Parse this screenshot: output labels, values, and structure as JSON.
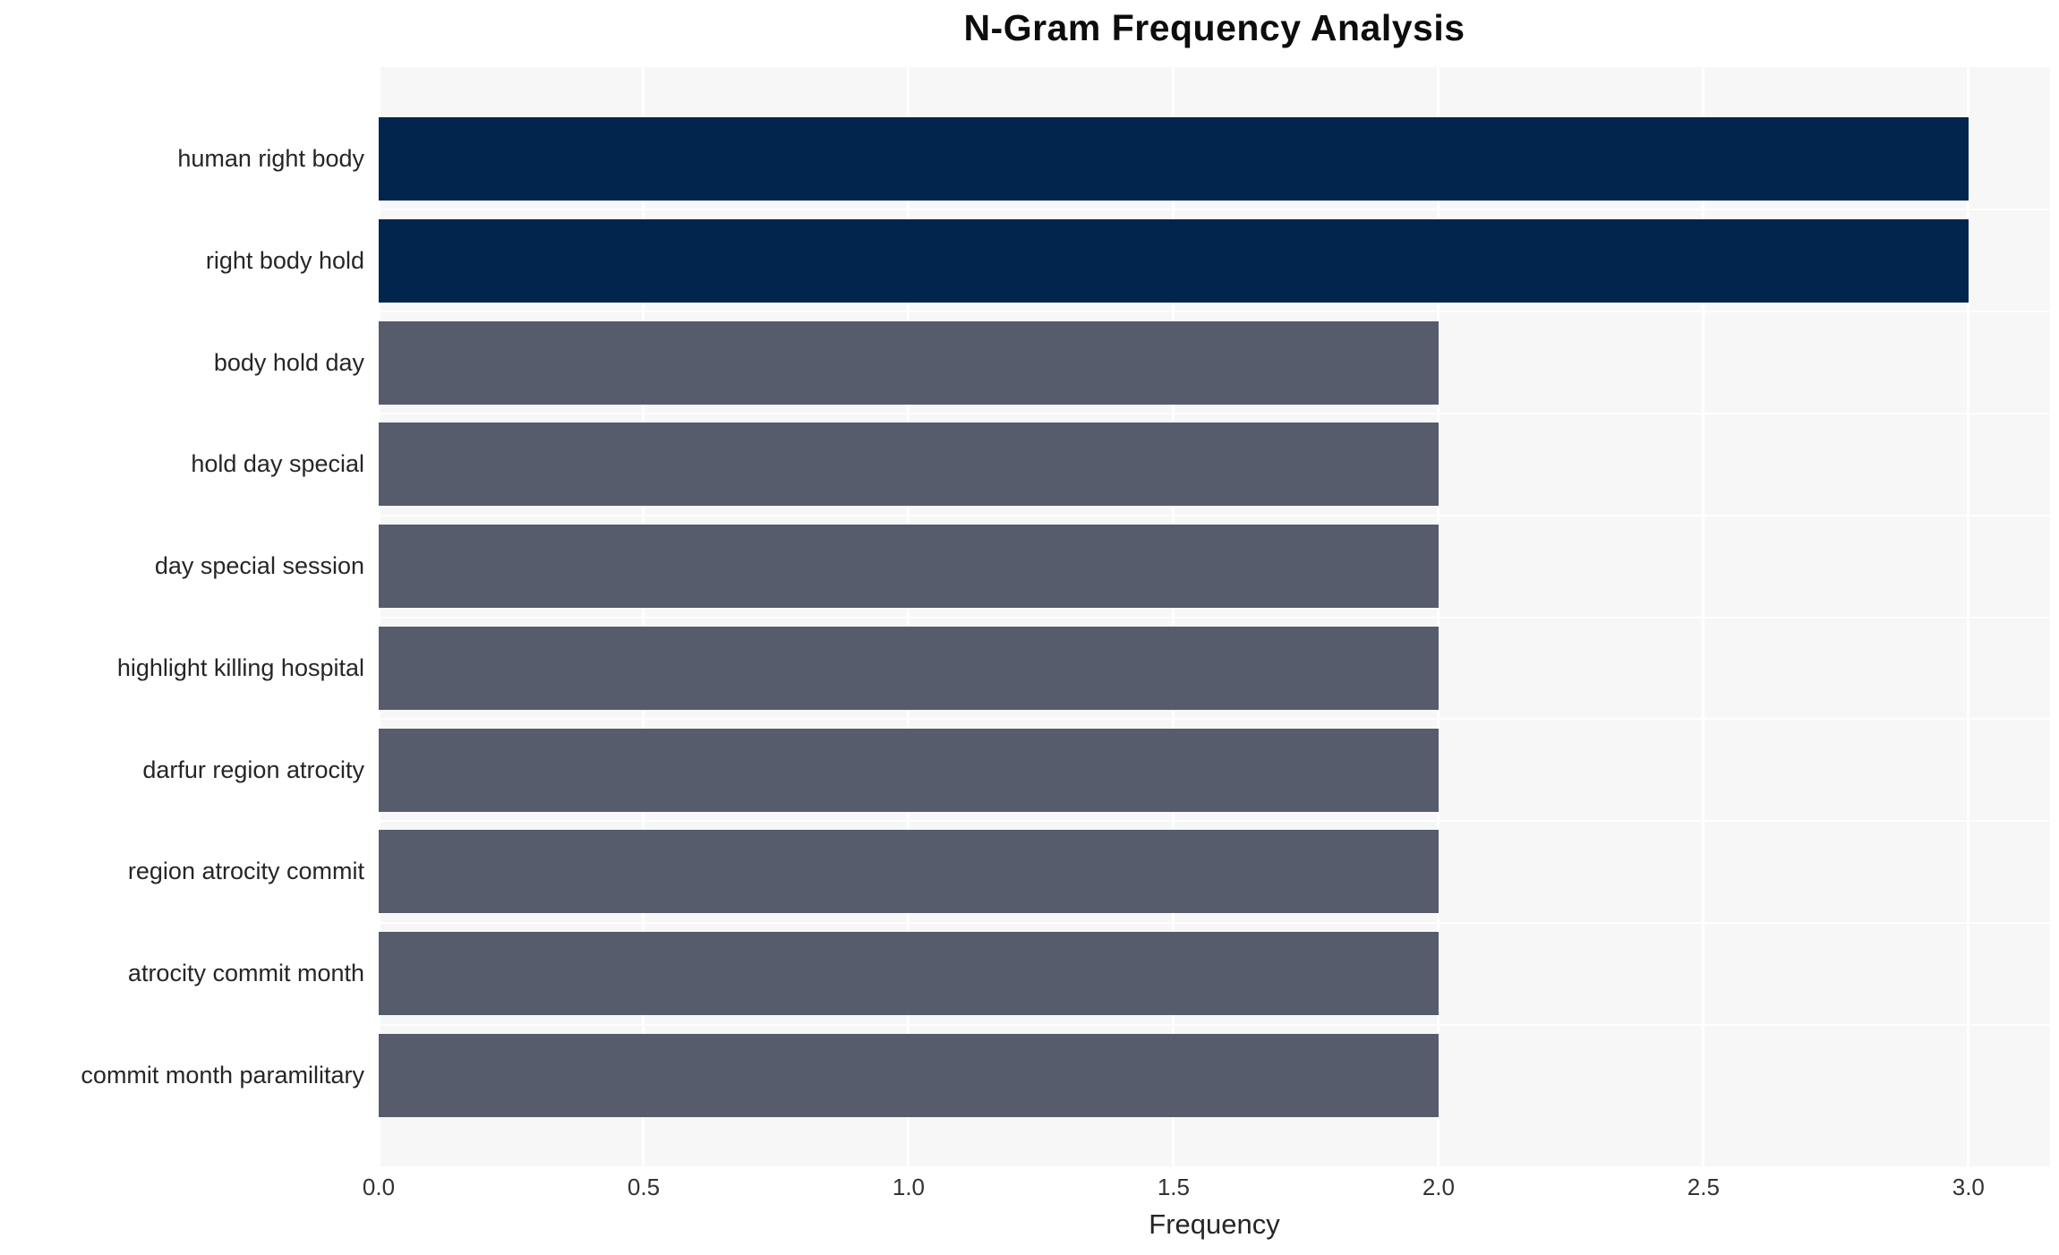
{
  "chart_data": {
    "type": "bar",
    "orientation": "horizontal",
    "title": "N-Gram Frequency Analysis",
    "xlabel": "Frequency",
    "ylabel": "",
    "categories": [
      "human right body",
      "right body hold",
      "body hold day",
      "hold day special",
      "day special session",
      "highlight killing hospital",
      "darfur region atrocity",
      "region atrocity commit",
      "atrocity commit month",
      "commit month paramilitary"
    ],
    "values": [
      3,
      3,
      2,
      2,
      2,
      2,
      2,
      2,
      2,
      2
    ],
    "bar_colors": [
      "#02254e",
      "#02254e",
      "#565c6c",
      "#565c6c",
      "#565c6c",
      "#565c6c",
      "#565c6c",
      "#565c6c",
      "#565c6c",
      "#565c6c"
    ],
    "xlim": [
      0,
      3.154
    ],
    "xticks": [
      0,
      0.5,
      1,
      1.5,
      2,
      2.5,
      3
    ],
    "xtick_labels": [
      "0.0",
      "0.5",
      "1.0",
      "1.5",
      "2.0",
      "2.5",
      "3.0"
    ],
    "legend": "none",
    "grid": "on",
    "colors": {
      "highlight_bar": "#02254e",
      "default_bar": "#565c6c",
      "plot_background": "#f7f7f8",
      "gridline": "#ffffff",
      "title_text": "#0d0d0d",
      "label_text": "#262626",
      "tick_text": "#333333"
    }
  }
}
